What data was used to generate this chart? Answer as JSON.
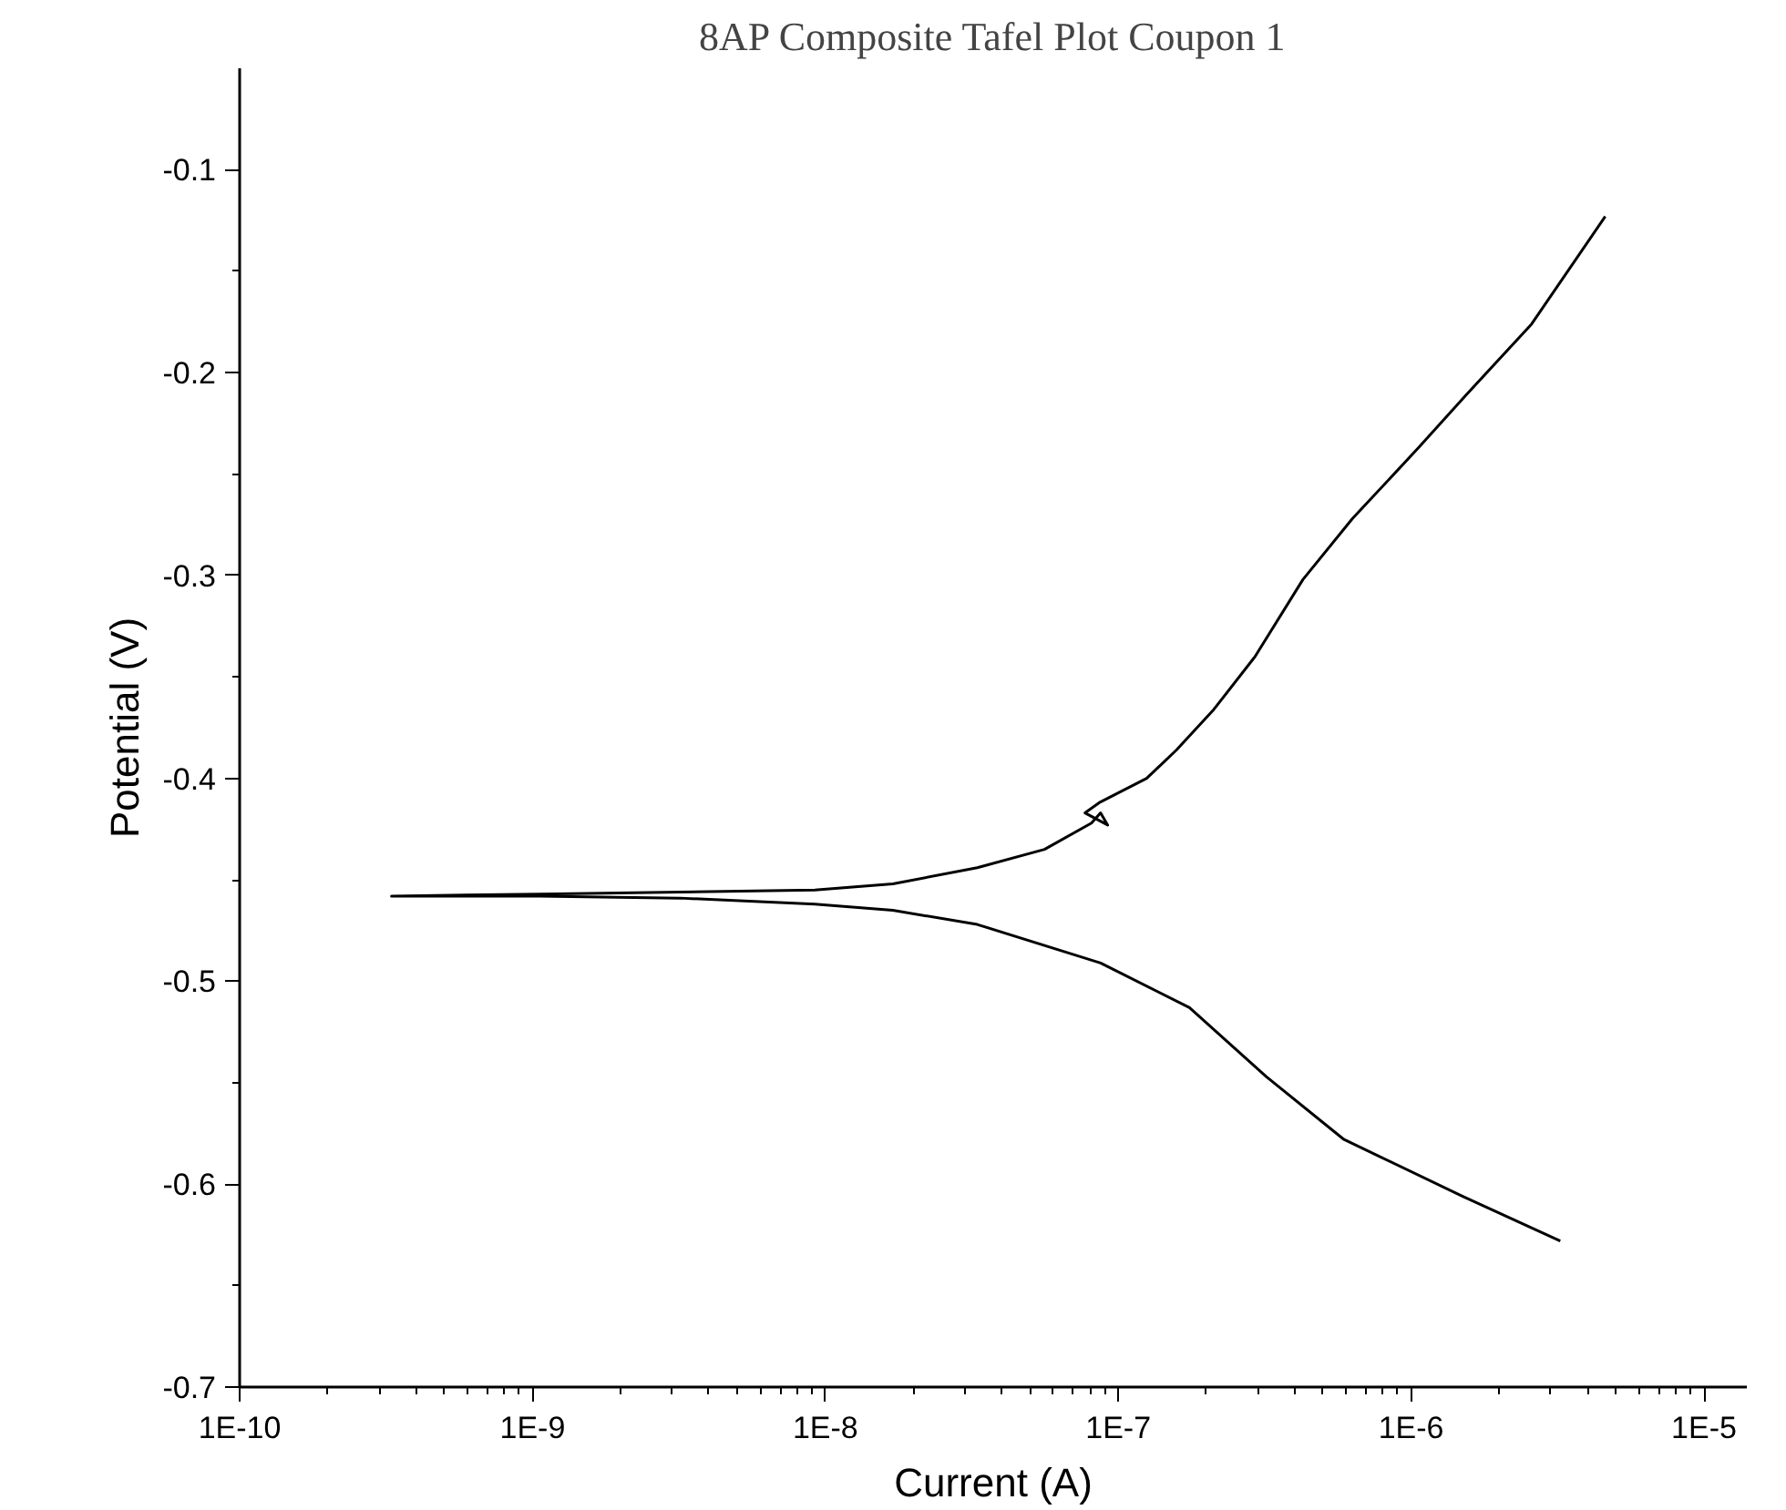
{
  "chart_data": {
    "type": "line",
    "title": "8AP Composite Tafel Plot Coupon 1",
    "xlabel": "Current (A)",
    "ylabel": "Potential (V)",
    "log": "x",
    "grid": false,
    "xlim": [
      1e-10,
      1.4e-05
    ],
    "ylim": [
      -0.7,
      -0.05
    ],
    "xticks": [
      {
        "value": 1e-10,
        "label": "1E-10"
      },
      {
        "value": 1e-09,
        "label": "1E-9"
      },
      {
        "value": 1e-08,
        "label": "1E-8"
      },
      {
        "value": 1e-07,
        "label": "1E-7"
      },
      {
        "value": 1e-06,
        "label": "1E-6"
      },
      {
        "value": 1e-05,
        "label": "1E-5"
      }
    ],
    "yticks": [
      -0.7,
      -0.6,
      -0.5,
      -0.4,
      -0.3,
      -0.2,
      -0.1
    ],
    "series": [
      {
        "color": "#000000",
        "x": [
          3.23e-06,
          1.5e-06,
          5.9e-07,
          3.2e-07,
          1.75e-07,
          8.7e-08,
          3.3e-08,
          1.7e-08,
          9.2e-09,
          3.2e-09,
          1.06e-09,
          3.3e-10,
          1.06e-09,
          3.2e-09,
          9.2e-09,
          1.7e-08,
          3.3e-08,
          5.6e-08,
          8.1e-08,
          8.7e-08,
          9.2e-08,
          7.7e-08,
          8.6e-08,
          1.25e-07,
          1.58e-07,
          2.12e-07,
          2.93e-07,
          4.27e-07,
          6.3e-07,
          1.06e-06,
          1.54e-06,
          2.58e-06,
          4.6e-06
        ],
        "values": [
          -0.628,
          -0.606,
          -0.578,
          -0.547,
          -0.513,
          -0.491,
          -0.472,
          -0.465,
          -0.462,
          -0.459,
          -0.458,
          -0.458,
          -0.457,
          -0.456,
          -0.455,
          -0.452,
          -0.444,
          -0.435,
          -0.422,
          -0.417,
          -0.423,
          -0.417,
          -0.412,
          -0.4,
          -0.386,
          -0.366,
          -0.34,
          -0.302,
          -0.272,
          -0.237,
          -0.211,
          -0.176,
          -0.123
        ]
      }
    ],
    "marker": "none",
    "line_style": "solid"
  }
}
